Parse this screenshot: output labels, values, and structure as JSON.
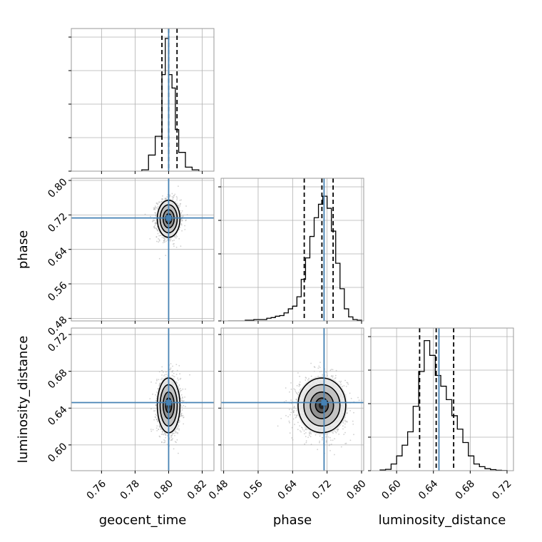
{
  "chart_data": {
    "type": "corner",
    "parameters": [
      {
        "name": "geocent_time",
        "label": "geocent_time",
        "range": [
          0.742,
          0.827
        ],
        "ticks": [
          0.76,
          0.78,
          0.8,
          0.82
        ],
        "tick_labels": [
          "0.76",
          "0.78",
          "0.80",
          "0.82"
        ],
        "truth": 0.8,
        "quantiles": [
          0.796,
          0.8,
          0.805
        ]
      },
      {
        "name": "phase",
        "label": "phase",
        "range": [
          0.474,
          0.805
        ],
        "ticks": [
          0.48,
          0.56,
          0.64,
          0.72,
          0.8
        ],
        "tick_labels": [
          "0.48",
          "0.56",
          "0.64",
          "0.72",
          "0.80"
        ],
        "truth": 0.713,
        "quantiles": [
          0.667,
          0.708,
          0.734
        ]
      },
      {
        "name": "luminosity_distance",
        "label": "luminosity_distance",
        "range": [
          0.572,
          0.727
        ],
        "ticks": [
          0.6,
          0.64,
          0.68,
          0.72
        ],
        "tick_labels": [
          "0.60",
          "0.64",
          "0.68",
          "0.72"
        ],
        "truth": 0.646,
        "quantiles": [
          0.625,
          0.643,
          0.662
        ]
      }
    ],
    "histograms": [
      {
        "parameter": "geocent_time",
        "bin_edges": [
          0.784,
          0.788,
          0.792,
          0.796,
          0.798,
          0.8,
          0.802,
          0.804,
          0.806,
          0.81,
          0.814,
          0.818
        ],
        "counts": [
          0.01,
          0.12,
          0.26,
          0.72,
          0.99,
          0.72,
          0.62,
          0.31,
          0.14,
          0.03,
          0.01
        ]
      },
      {
        "parameter": "phase",
        "bin_edges": [
          0.49,
          0.5,
          0.51,
          0.52,
          0.53,
          0.54,
          0.55,
          0.56,
          0.57,
          0.58,
          0.59,
          0.6,
          0.61,
          0.62,
          0.63,
          0.64,
          0.65,
          0.66,
          0.67,
          0.68,
          0.69,
          0.7,
          0.71,
          0.72,
          0.73,
          0.74,
          0.75,
          0.76,
          0.77,
          0.78,
          0.79,
          0.8
        ],
        "counts": [
          0,
          0,
          0,
          0,
          0.005,
          0.005,
          0.01,
          0.01,
          0.01,
          0.02,
          0.025,
          0.035,
          0.04,
          0.06,
          0.09,
          0.11,
          0.18,
          0.31,
          0.47,
          0.63,
          0.77,
          0.87,
          0.93,
          0.84,
          0.67,
          0.43,
          0.24,
          0.09,
          0.03,
          0.01,
          0.005
        ]
      },
      {
        "parameter": "luminosity_distance",
        "bin_edges": [
          0.582,
          0.588,
          0.594,
          0.6,
          0.606,
          0.612,
          0.618,
          0.624,
          0.63,
          0.636,
          0.642,
          0.648,
          0.654,
          0.66,
          0.666,
          0.672,
          0.678,
          0.684,
          0.69,
          0.696,
          0.702,
          0.708,
          0.714,
          0.72
        ],
        "counts": [
          0.005,
          0.01,
          0.05,
          0.11,
          0.19,
          0.29,
          0.48,
          0.74,
          0.97,
          0.86,
          0.71,
          0.63,
          0.53,
          0.41,
          0.31,
          0.21,
          0.11,
          0.05,
          0.03,
          0.015,
          0.008,
          0.003,
          0.001
        ]
      }
    ],
    "joint": [
      {
        "x": "geocent_time",
        "y": "phase",
        "center": [
          0.8,
          0.711
        ],
        "spread": [
          0.0033,
          0.021
        ]
      },
      {
        "x": "geocent_time",
        "y": "luminosity_distance",
        "center": [
          0.8,
          0.643
        ],
        "spread": [
          0.0033,
          0.0145
        ]
      },
      {
        "x": "phase",
        "y": "luminosity_distance",
        "center": [
          0.708,
          0.643
        ],
        "spread": [
          0.027,
          0.0145
        ]
      }
    ],
    "grid": true,
    "colors": {
      "truth": "#4682b4",
      "hist": "#000000",
      "quantile": "#000000",
      "contour": "#000000",
      "points": "#aaaaaa",
      "frame": "#999999",
      "grid": "#b0b0b0"
    }
  }
}
